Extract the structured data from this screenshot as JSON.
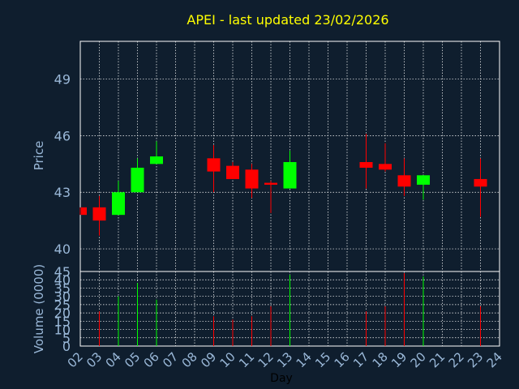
{
  "title": "APEI - last updated 23/02/2026",
  "chart_data": [
    {
      "type": "candlestick",
      "ylabel": "Price",
      "ylim": [
        38.8,
        51.0
      ],
      "yticks": [
        40,
        43,
        46,
        49
      ],
      "grid": true,
      "colors": {
        "up": "#00ff00",
        "down": "#ff0000"
      },
      "x": [
        "02",
        "03",
        "04",
        "05",
        "06",
        "09",
        "10",
        "11",
        "12",
        "13",
        "17",
        "18",
        "19",
        "20",
        "23"
      ],
      "open": [
        42.2,
        42.2,
        41.8,
        43.0,
        44.5,
        44.8,
        44.4,
        44.2,
        43.5,
        43.2,
        44.6,
        44.5,
        43.9,
        43.4,
        43.7
      ],
      "high": [
        42.2,
        42.8,
        43.6,
        44.8,
        45.7,
        45.5,
        44.6,
        44.5,
        43.6,
        45.2,
        46.1,
        45.6,
        44.8,
        43.9,
        44.8
      ],
      "low": [
        41.8,
        40.7,
        41.8,
        43.0,
        44.5,
        43.0,
        43.7,
        42.7,
        41.9,
        43.2,
        43.2,
        44.1,
        42.8,
        42.6,
        41.7
      ],
      "close": [
        41.8,
        41.5,
        43.0,
        44.3,
        44.9,
        44.1,
        43.7,
        43.2,
        43.4,
        44.6,
        44.3,
        44.2,
        43.3,
        43.9,
        43.3
      ]
    },
    {
      "type": "bar",
      "ylabel": "Volume (0000)",
      "xlabel": "Day",
      "ylim": [
        0,
        45
      ],
      "yticks": [
        0,
        5,
        10,
        15,
        20,
        25,
        30,
        35,
        40,
        45
      ],
      "grid": true,
      "categories": [
        "02",
        "03",
        "04",
        "05",
        "06",
        "07",
        "08",
        "09",
        "10",
        "11",
        "12",
        "13",
        "14",
        "15",
        "16",
        "17",
        "18",
        "19",
        "20",
        "21",
        "22",
        "23",
        "24"
      ],
      "bars": [
        {
          "x": "03",
          "value": 21,
          "color": "#ff0000"
        },
        {
          "x": "04",
          "value": 30,
          "color": "#00ff00"
        },
        {
          "x": "05",
          "value": 38,
          "color": "#00ff00"
        },
        {
          "x": "06",
          "value": 28,
          "color": "#00ff00"
        },
        {
          "x": "09",
          "value": 18,
          "color": "#ff0000"
        },
        {
          "x": "10",
          "value": 16,
          "color": "#ff0000"
        },
        {
          "x": "11",
          "value": 18,
          "color": "#ff0000"
        },
        {
          "x": "12",
          "value": 24,
          "color": "#ff0000"
        },
        {
          "x": "13",
          "value": 43,
          "color": "#00ff00"
        },
        {
          "x": "17",
          "value": 21,
          "color": "#ff0000"
        },
        {
          "x": "18",
          "value": 24,
          "color": "#ff0000"
        },
        {
          "x": "19",
          "value": 44,
          "color": "#ff0000"
        },
        {
          "x": "20",
          "value": 42,
          "color": "#00ff00"
        },
        {
          "x": "23",
          "value": 24,
          "color": "#ff0000"
        }
      ]
    }
  ],
  "colors": {
    "background": "#0f1e2e",
    "plot_border": "#ffffff",
    "grid": "#ffffff",
    "title": "#ffff00",
    "axis_text": "#9ab8d8",
    "xlabel_text": "#000000"
  }
}
